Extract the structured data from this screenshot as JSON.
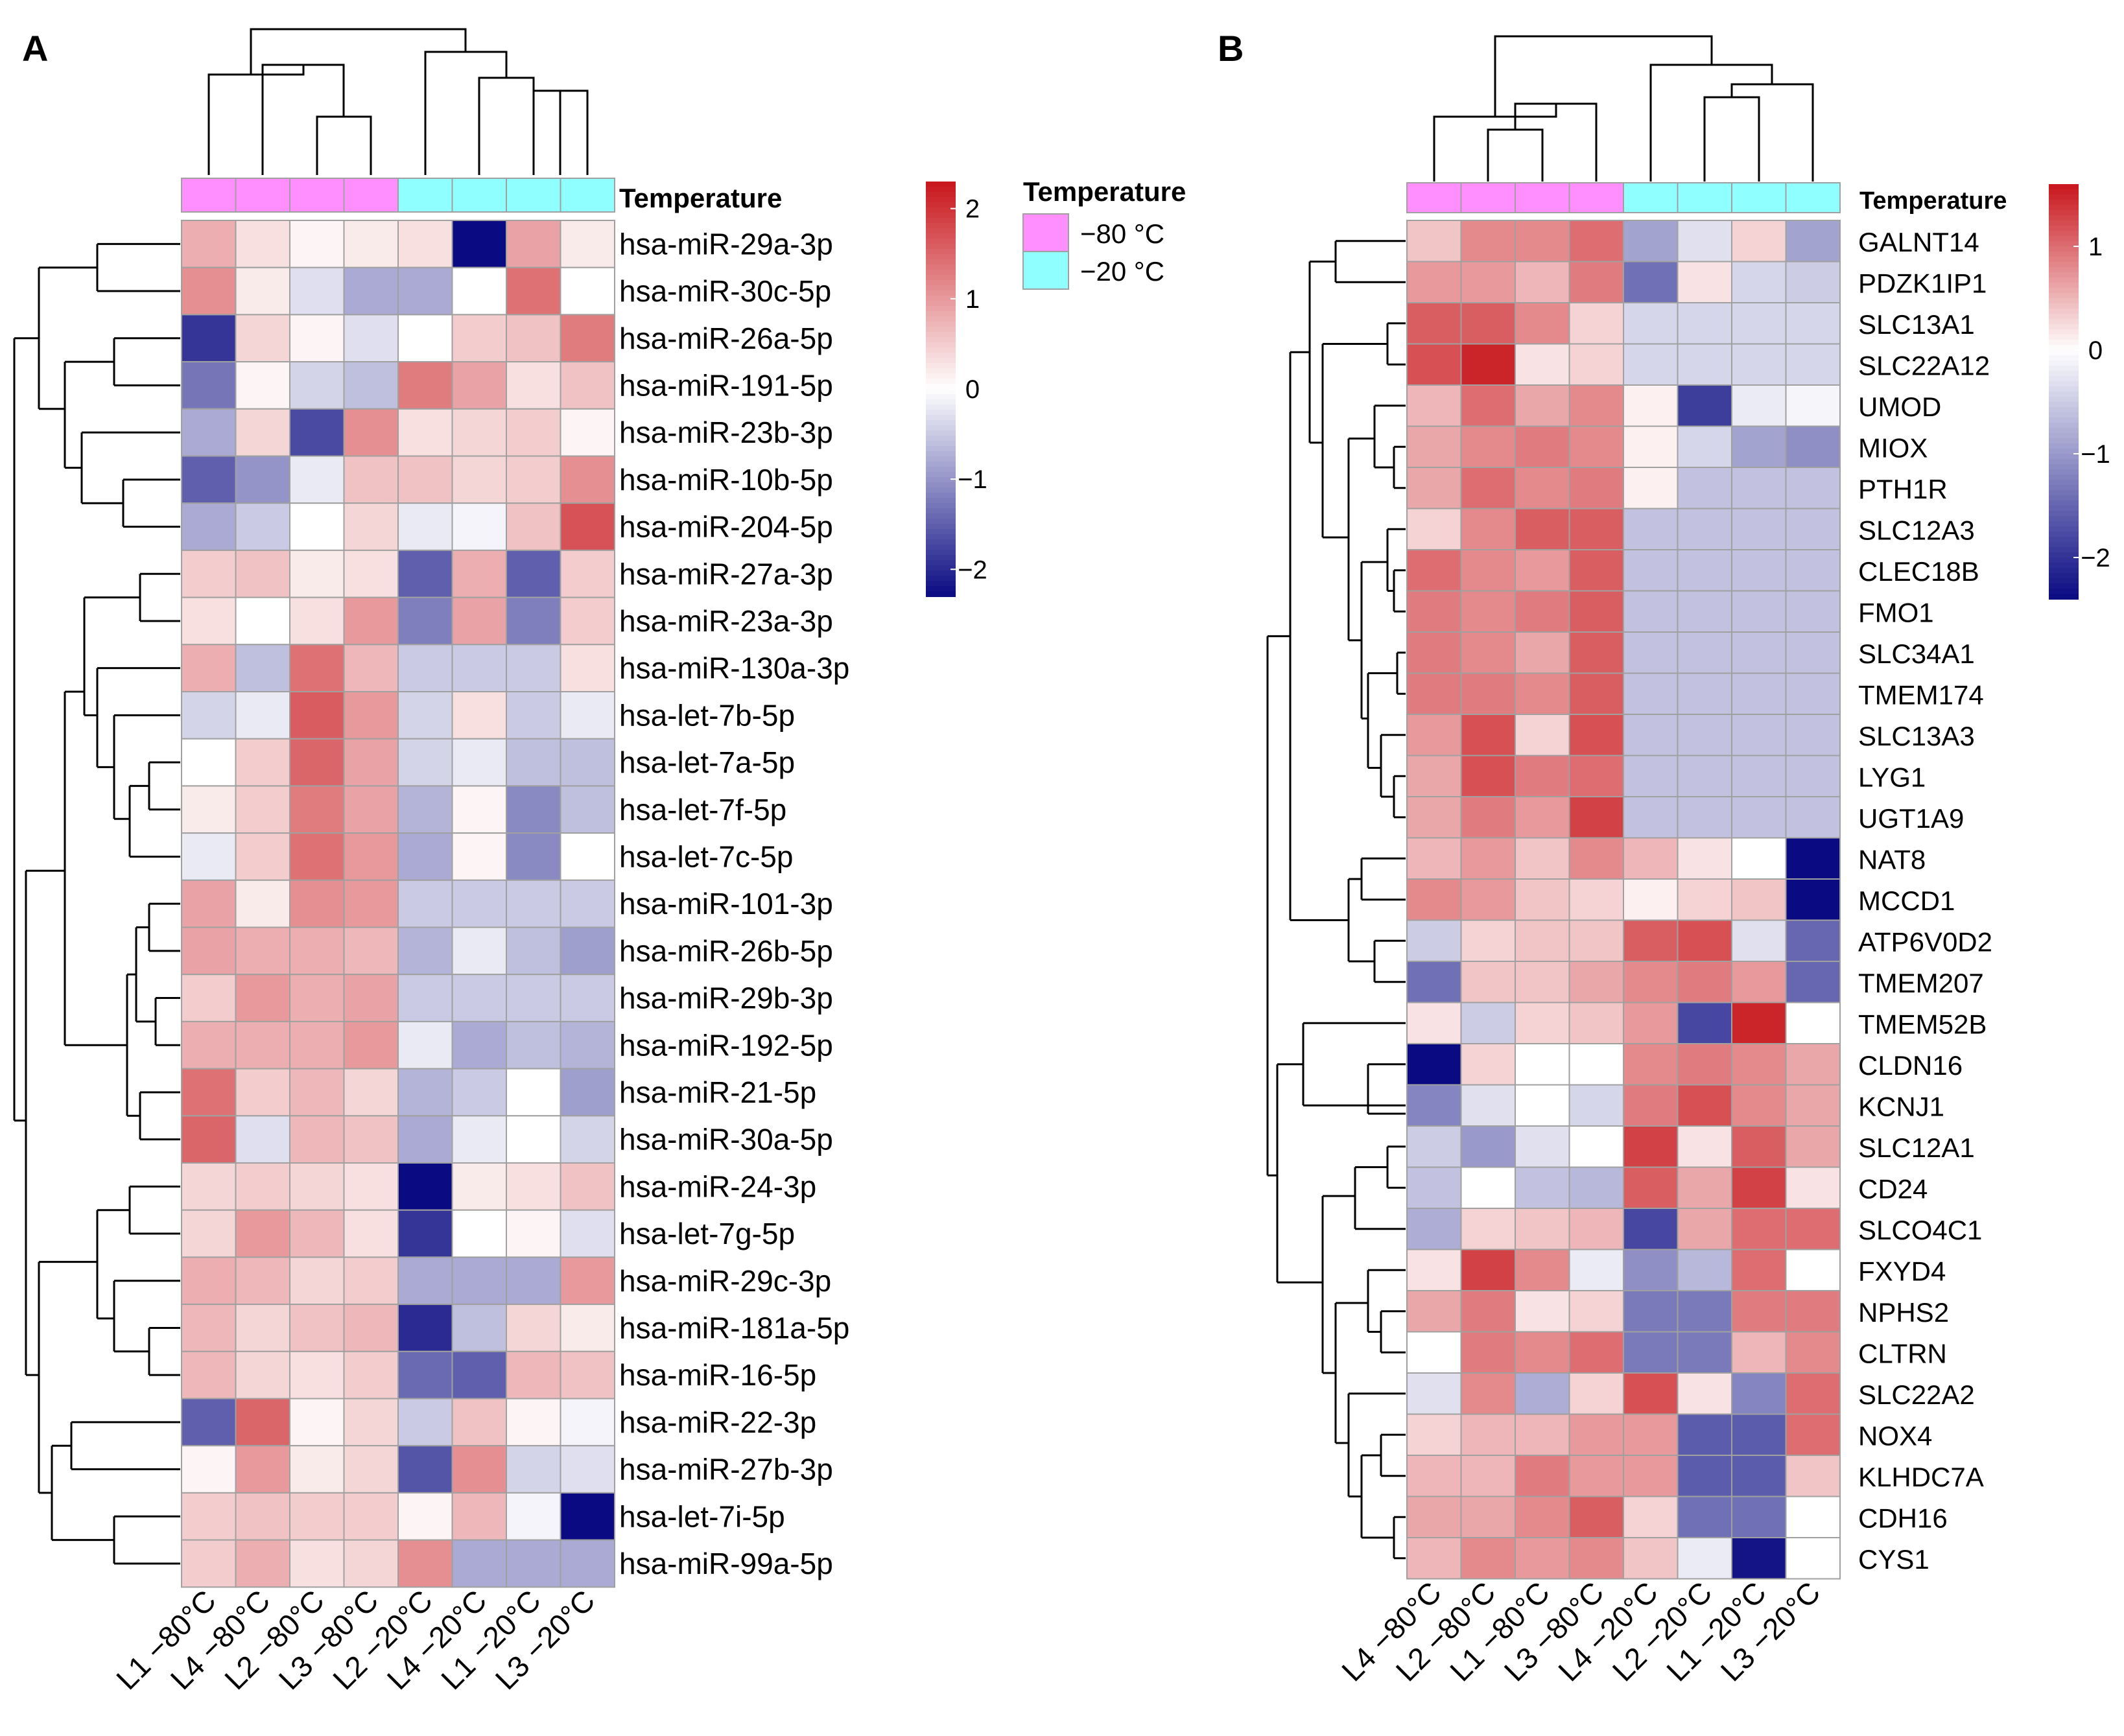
{
  "figure": {
    "panel_a_label": "A",
    "panel_b_label": "B"
  },
  "legend": {
    "title": "Temperature",
    "items": [
      {
        "label": "−80 °C",
        "color": "#FF8FFF"
      },
      {
        "label": "−20 °C",
        "color": "#8FFFFF"
      }
    ]
  },
  "colors": {
    "low": "#0A0A82",
    "mid": "#FFFFFF",
    "high": "#C8151B",
    "grid": "#A0A0A0"
  },
  "chart_data": [
    {
      "type": "heatmap",
      "panel": "A",
      "annotation_label": "Temperature",
      "columns": [
        "L1 −80°C",
        "L4 −80°C",
        "L2 −80°C",
        "L3 −80°C",
        "L2 −20°C",
        "L4 −20°C",
        "L1 −20°C",
        "L3 −20°C"
      ],
      "column_groups": [
        "−80 °C",
        "−80 °C",
        "−80 °C",
        "−80 °C",
        "−20 °C",
        "−20 °C",
        "−20 °C",
        "−20 °C"
      ],
      "rows": [
        "hsa-miR-29a-3p",
        "hsa-miR-30c-5p",
        "hsa-miR-26a-5p",
        "hsa-miR-191-5p",
        "hsa-miR-23b-3p",
        "hsa-miR-10b-5p",
        "hsa-miR-204-5p",
        "hsa-miR-27a-3p",
        "hsa-miR-23a-3p",
        "hsa-miR-130a-3p",
        "hsa-let-7b-5p",
        "hsa-let-7a-5p",
        "hsa-let-7f-5p",
        "hsa-let-7c-5p",
        "hsa-miR-101-3p",
        "hsa-miR-26b-5p",
        "hsa-miR-29b-3p",
        "hsa-miR-192-5p",
        "hsa-miR-21-5p",
        "hsa-miR-30a-5p",
        "hsa-miR-24-3p",
        "hsa-let-7g-5p",
        "hsa-miR-29c-3p",
        "hsa-miR-181a-5p",
        "hsa-miR-16-5p",
        "hsa-miR-22-3p",
        "hsa-miR-27b-3p",
        "hsa-let-7i-5p",
        "hsa-miR-99a-5p"
      ],
      "values": [
        [
          0.8,
          0.3,
          0.1,
          0.2,
          0.3,
          -2.3,
          0.9,
          0.2
        ],
        [
          1.1,
          0.2,
          -0.3,
          -0.8,
          -0.8,
          0.0,
          1.4,
          0.0
        ],
        [
          -1.9,
          0.4,
          0.1,
          -0.3,
          0.0,
          0.5,
          0.6,
          1.3
        ],
        [
          -1.3,
          0.1,
          -0.4,
          -0.6,
          1.3,
          0.9,
          0.3,
          0.6
        ],
        [
          -0.8,
          0.4,
          -1.7,
          1.1,
          0.3,
          0.4,
          0.5,
          0.1
        ],
        [
          -1.5,
          -1.0,
          -0.2,
          0.6,
          0.6,
          0.4,
          0.5,
          1.1
        ],
        [
          -0.8,
          -0.5,
          0.0,
          0.4,
          -0.2,
          -0.1,
          0.6,
          1.7
        ],
        [
          0.5,
          0.6,
          0.2,
          0.3,
          -1.5,
          0.8,
          -1.5,
          0.5
        ],
        [
          0.3,
          0.0,
          0.3,
          1.0,
          -1.2,
          0.9,
          -1.2,
          0.5
        ],
        [
          0.8,
          -0.6,
          1.4,
          0.7,
          -0.5,
          -0.5,
          -0.5,
          0.3
        ],
        [
          -0.4,
          -0.2,
          1.6,
          1.0,
          -0.4,
          0.3,
          -0.5,
          -0.2
        ],
        [
          0.0,
          0.5,
          1.5,
          0.9,
          -0.4,
          -0.2,
          -0.6,
          -0.6
        ],
        [
          0.2,
          0.5,
          1.3,
          0.9,
          -0.7,
          0.1,
          -1.1,
          -0.6
        ],
        [
          -0.2,
          0.5,
          1.4,
          1.0,
          -0.8,
          0.1,
          -1.1,
          0.0
        ],
        [
          0.9,
          0.2,
          1.1,
          1.0,
          -0.5,
          -0.5,
          -0.5,
          -0.5
        ],
        [
          0.9,
          0.8,
          0.8,
          0.7,
          -0.7,
          -0.2,
          -0.6,
          -0.9
        ],
        [
          0.5,
          1.0,
          0.8,
          0.9,
          -0.5,
          -0.5,
          -0.5,
          -0.5
        ],
        [
          0.8,
          0.8,
          0.8,
          1.0,
          -0.2,
          -0.8,
          -0.6,
          -0.7
        ],
        [
          1.4,
          0.5,
          0.7,
          0.4,
          -0.7,
          -0.5,
          0.0,
          -0.9
        ],
        [
          1.5,
          -0.3,
          0.7,
          0.6,
          -0.8,
          -0.2,
          0.0,
          -0.4
        ],
        [
          0.4,
          0.5,
          0.4,
          0.3,
          -2.3,
          0.2,
          0.3,
          0.6
        ],
        [
          0.4,
          1.0,
          0.7,
          0.3,
          -1.9,
          0.0,
          0.1,
          -0.3
        ],
        [
          0.8,
          0.7,
          0.4,
          0.5,
          -0.8,
          -0.8,
          -0.8,
          1.0
        ],
        [
          0.7,
          0.4,
          0.6,
          0.7,
          -2.0,
          -0.6,
          0.4,
          0.2
        ],
        [
          0.7,
          0.4,
          0.3,
          0.5,
          -1.4,
          -1.5,
          0.7,
          0.6
        ],
        [
          -1.5,
          1.5,
          0.1,
          0.4,
          -0.5,
          0.6,
          0.1,
          -0.1
        ],
        [
          0.1,
          1.0,
          0.2,
          0.4,
          -1.6,
          1.1,
          -0.4,
          -0.3
        ],
        [
          0.5,
          0.6,
          0.5,
          0.5,
          0.1,
          0.7,
          -0.1,
          -2.3
        ],
        [
          0.5,
          0.8,
          0.3,
          0.4,
          1.1,
          -0.8,
          -0.8,
          -0.8
        ]
      ],
      "colorbar": {
        "range": [
          -2.3,
          2.3
        ],
        "ticks": [
          2,
          1,
          0,
          -1,
          -2
        ],
        "tick_labels": [
          "2",
          "1",
          "0",
          "−1",
          "−2"
        ]
      }
    },
    {
      "type": "heatmap",
      "panel": "B",
      "annotation_label": "Temperature",
      "columns": [
        "L4 −80°C",
        "L2 −80°C",
        "L1 −80°C",
        "L3 −80°C",
        "L4 −20°C",
        "L2 −20°C",
        "L1 −20°C",
        "L3 −20°C"
      ],
      "column_groups": [
        "−80 °C",
        "−80 °C",
        "−80 °C",
        "−80 °C",
        "−20 °C",
        "−20 °C",
        "−20 °C",
        "−20 °C"
      ],
      "rows": [
        "GALNT14",
        "PDZK1IP1",
        "SLC13A1",
        "SLC22A12",
        "UMOD",
        "MIOX",
        "PTH1R",
        "SLC12A3",
        "CLEC18B",
        "FMO1",
        "SLC34A1",
        "TMEM174",
        "SLC13A3",
        "LYG1",
        "UGT1A9",
        "NAT8",
        "MCCD1",
        "ATP6V0D2",
        "TMEM207",
        "TMEM52B",
        "CLDN16",
        "KCNJ1",
        "SLC12A1",
        "CD24",
        "SLCO4C1",
        "FXYD4",
        "NPHS2",
        "CLTRN",
        "SLC22A2",
        "NOX4",
        "KLHDC7A",
        "CDH16",
        "CYS1"
      ],
      "values": [
        [
          0.4,
          0.8,
          0.8,
          1.0,
          -0.9,
          -0.3,
          0.3,
          -0.9
        ],
        [
          0.7,
          0.7,
          0.5,
          0.9,
          -1.4,
          0.2,
          -0.4,
          -0.5
        ],
        [
          1.1,
          1.1,
          0.8,
          0.3,
          -0.4,
          -0.4,
          -0.4,
          -0.4
        ],
        [
          1.2,
          1.5,
          0.2,
          0.3,
          -0.4,
          -0.4,
          -0.4,
          -0.4
        ],
        [
          0.5,
          1.0,
          0.6,
          0.8,
          0.1,
          -1.9,
          -0.2,
          -0.1
        ],
        [
          0.6,
          0.8,
          0.9,
          0.8,
          0.1,
          -0.4,
          -0.9,
          -1.1
        ],
        [
          0.6,
          1.0,
          0.8,
          0.9,
          0.1,
          -0.6,
          -0.6,
          -0.6
        ],
        [
          0.3,
          0.8,
          1.1,
          1.1,
          -0.6,
          -0.6,
          -0.6,
          -0.6
        ],
        [
          1.0,
          0.8,
          0.7,
          1.1,
          -0.6,
          -0.6,
          -0.6,
          -0.6
        ],
        [
          0.9,
          0.8,
          0.9,
          1.1,
          -0.6,
          -0.6,
          -0.6,
          -0.6
        ],
        [
          0.9,
          0.8,
          0.6,
          1.1,
          -0.6,
          -0.6,
          -0.6,
          -0.6
        ],
        [
          0.9,
          0.9,
          0.8,
          1.1,
          -0.6,
          -0.6,
          -0.6,
          -0.6
        ],
        [
          0.7,
          1.2,
          0.3,
          1.2,
          -0.6,
          -0.6,
          -0.6,
          -0.6
        ],
        [
          0.6,
          1.2,
          0.9,
          1.0,
          -0.6,
          -0.6,
          -0.6,
          -0.6
        ],
        [
          0.6,
          0.9,
          0.7,
          1.3,
          -0.6,
          -0.6,
          -0.6,
          -0.6
        ],
        [
          0.5,
          0.7,
          0.4,
          0.8,
          0.5,
          0.2,
          0.0,
          -2.4
        ],
        [
          0.8,
          0.7,
          0.4,
          0.3,
          0.1,
          0.3,
          0.4,
          -2.4
        ],
        [
          -0.5,
          0.3,
          0.4,
          0.4,
          1.1,
          1.2,
          -0.3,
          -1.5
        ],
        [
          -1.4,
          0.4,
          0.4,
          0.6,
          0.8,
          0.9,
          0.7,
          -1.5
        ],
        [
          0.2,
          -0.5,
          0.3,
          0.4,
          0.7,
          -1.8,
          1.5,
          0.0
        ],
        [
          -2.4,
          0.3,
          0.0,
          0.0,
          0.8,
          0.9,
          0.8,
          0.6
        ],
        [
          -1.2,
          -0.3,
          0.0,
          -0.4,
          0.9,
          1.2,
          0.8,
          0.6
        ],
        [
          -0.5,
          -1.0,
          -0.3,
          0.0,
          1.3,
          0.2,
          1.1,
          0.6
        ],
        [
          -0.6,
          0.0,
          -0.6,
          -0.7,
          1.1,
          0.6,
          1.3,
          0.2
        ],
        [
          -0.8,
          0.3,
          0.4,
          0.5,
          -1.8,
          0.6,
          1.0,
          1.0
        ],
        [
          0.2,
          1.3,
          0.8,
          -0.2,
          -1.1,
          -0.7,
          1.0,
          0.0
        ],
        [
          0.6,
          0.9,
          0.2,
          0.3,
          -1.3,
          -1.3,
          0.9,
          0.9
        ],
        [
          0.0,
          0.9,
          0.8,
          1.0,
          -1.3,
          -1.3,
          0.5,
          0.8
        ],
        [
          -0.3,
          0.8,
          -0.8,
          0.3,
          1.2,
          0.2,
          -1.2,
          1.0
        ],
        [
          0.3,
          0.5,
          0.5,
          0.7,
          0.7,
          -1.6,
          -1.6,
          1.0
        ],
        [
          0.5,
          0.5,
          0.9,
          0.7,
          0.7,
          -1.6,
          -1.6,
          0.4
        ],
        [
          0.6,
          0.6,
          0.8,
          1.1,
          0.3,
          -1.4,
          -1.4,
          0.0
        ],
        [
          0.5,
          0.8,
          0.7,
          0.8,
          0.4,
          -0.2,
          -2.3,
          0.0
        ]
      ],
      "colorbar": {
        "range": [
          -2.4,
          1.6
        ],
        "ticks": [
          1,
          0,
          -1,
          -2
        ],
        "tick_labels": [
          "1",
          "0",
          "−1",
          "−2"
        ]
      }
    }
  ]
}
